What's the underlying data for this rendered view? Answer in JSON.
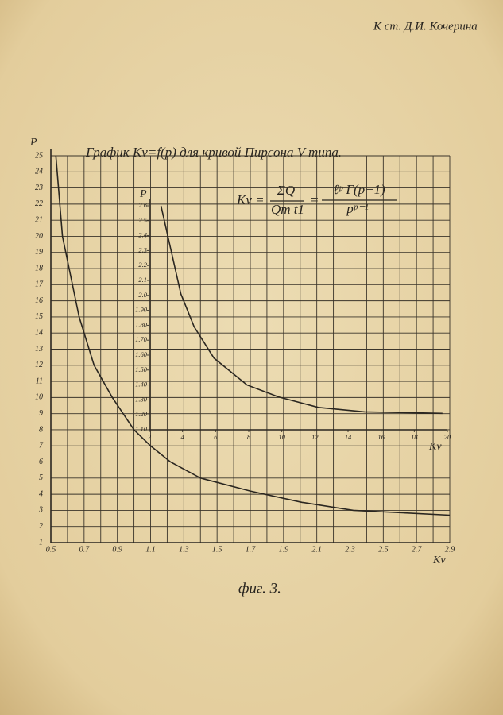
{
  "header": "К ст. Д.И. Кочерина",
  "caption": "фиг. 3.",
  "chart_data": [
    {
      "type": "line",
      "title": "График Kv=f(p) для кривой Пирсона V типа.",
      "annotation": {
        "lhs": "Kv =",
        "num1": "ΣQ",
        "den1": "Qm t1",
        "eq": "=",
        "num2": "ℓᵖ Γ(p−1)",
        "den2": "pᵖ⁻¹"
      },
      "ylabel": "P",
      "xlabel": "Kv",
      "x": [
        0.53,
        0.57,
        0.67,
        0.76,
        0.87,
        1.0,
        1.1,
        1.22,
        1.4,
        1.7,
        2.01,
        2.32,
        2.9
      ],
      "values": [
        25,
        20,
        15,
        12,
        10,
        8,
        7,
        6,
        5,
        4.2,
        3.5,
        3,
        2.7
      ],
      "color": "#2a2620",
      "xlim": [
        0.5,
        2.9
      ],
      "ylim": [
        1,
        25
      ],
      "xticks": [
        0.5,
        0.7,
        0.9,
        1.1,
        1.3,
        1.5,
        1.7,
        1.9,
        2.1,
        2.3,
        2.5,
        2.7,
        2.9
      ],
      "yticks": [
        1,
        2,
        3,
        4,
        5,
        6,
        7,
        8,
        9,
        10,
        11,
        12,
        13,
        14,
        15,
        16,
        17,
        18,
        19,
        20,
        21,
        22,
        23,
        24,
        25
      ],
      "grid": true
    },
    {
      "type": "line",
      "ylabel": "P",
      "xlabel": "Kv",
      "x": [
        2.7,
        3.9,
        4.7,
        5.9,
        7.9,
        9.8,
        12.2,
        15,
        19.7
      ],
      "values": [
        2.6,
        2.01,
        1.79,
        1.58,
        1.4,
        1.32,
        1.25,
        1.22,
        1.21
      ],
      "color": "#2a2620",
      "xlim": [
        2,
        20
      ],
      "ylim": [
        1.1,
        2.6
      ],
      "xticks": [
        2,
        4,
        6,
        8,
        10,
        12,
        14,
        16,
        18,
        20
      ],
      "yticks": [
        {
          "value": 1.1,
          "label": "1.10"
        },
        {
          "value": 1.2,
          "label": "1.20"
        },
        {
          "value": 1.3,
          "label": "1.30"
        },
        {
          "value": 1.4,
          "label": "1.40"
        },
        {
          "value": 1.5,
          "label": "1.50"
        },
        {
          "value": 1.6,
          "label": "1.60"
        },
        {
          "value": 1.7,
          "label": "1.70"
        },
        {
          "value": 1.8,
          "label": "1.80"
        },
        {
          "value": 1.9,
          "label": "1.90"
        },
        {
          "value": 2,
          "label": "2.0"
        },
        2.1,
        2.2,
        2.3,
        2.4,
        2.5,
        2.6
      ],
      "grid": false
    }
  ]
}
